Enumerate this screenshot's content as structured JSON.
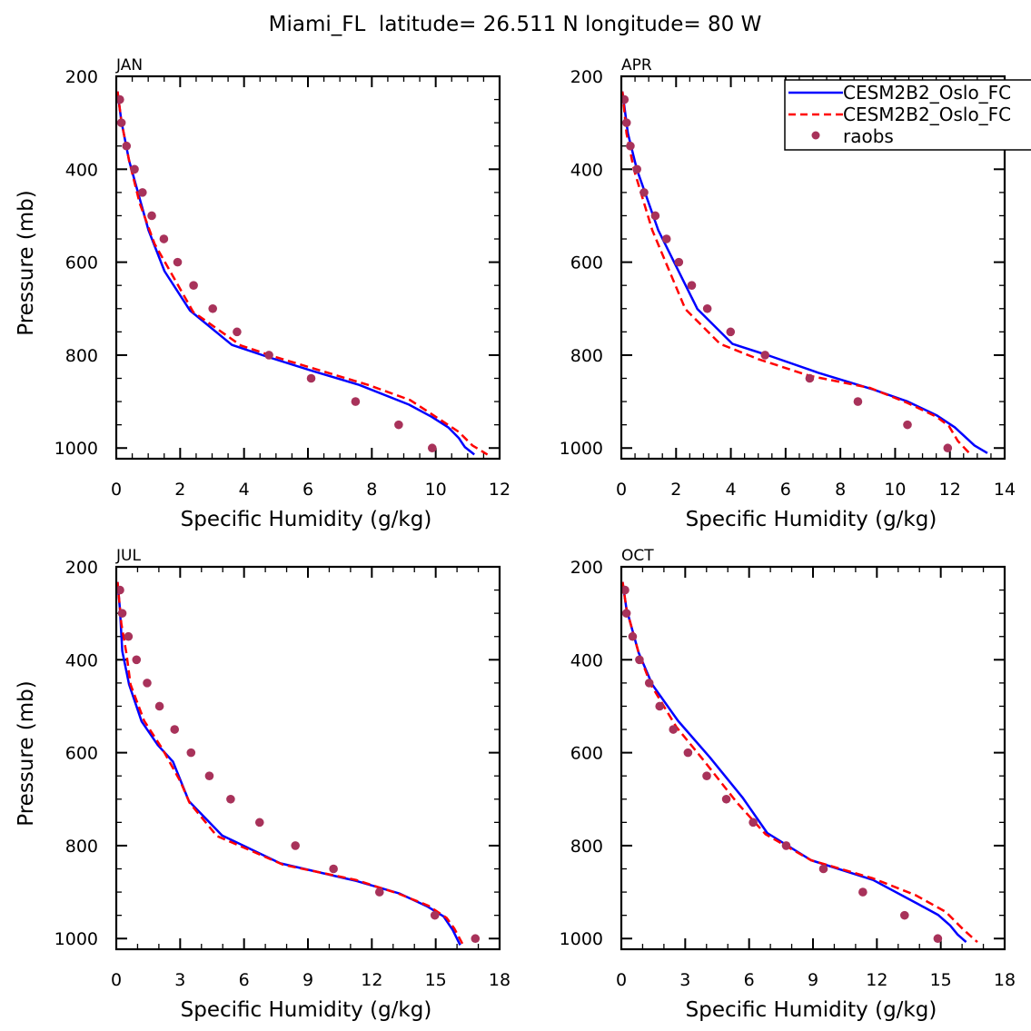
{
  "figure_title": "Miami_FL  latitude= 26.511 N longitude= 80 W",
  "legend": {
    "entries": [
      "CESM2B2_Oslo_FC",
      "CESM2B2_Oslo_FC",
      "raobs"
    ],
    "placement": "top-right of APR panel",
    "colors": [
      "#0000ff",
      "#ff0000",
      "#a8325a"
    ],
    "styles": [
      "solid",
      "dashed",
      "dot"
    ]
  },
  "chart_data": [
    {
      "type": "line",
      "title": "JAN",
      "xlabel": "Specific Humidity (g/kg)",
      "ylabel": "Pressure (mb)",
      "xlim": [
        0,
        12
      ],
      "ylim": [
        200,
        1023
      ],
      "y_inverted": true,
      "xticks": [
        0,
        2,
        4,
        6,
        8,
        10,
        12
      ],
      "yticks": [
        200,
        400,
        600,
        800,
        1000
      ],
      "series": [
        {
          "name": "CESM2B2_Oslo_FC",
          "style": "solid",
          "pressure": [
            232.6,
            296.5,
            381.3,
            531.4,
            619.4,
            704.2,
            778,
            804,
            834.7,
            864,
            906.5,
            932.6,
            955.4,
            978.2,
            997.8,
            1014
          ],
          "values": [
            0.04,
            0.16,
            0.4,
            1.01,
            1.51,
            2.31,
            3.62,
            4.75,
            6.17,
            7.6,
            9.16,
            9.87,
            10.39,
            10.72,
            10.91,
            11.21
          ]
        },
        {
          "name": "CESM2B2_Oslo_FC",
          "style": "dashed",
          "pressure": [
            232.6,
            296.5,
            381.3,
            472.7,
            560.7,
            707.5,
            779.2,
            805.3,
            864,
            896.7,
            939,
            965.2,
            994.5,
            1014
          ],
          "values": [
            0.04,
            0.16,
            0.4,
            0.73,
            1.2,
            2.41,
            3.9,
            5.04,
            7.88,
            9.2,
            10.14,
            10.72,
            11.15,
            11.62
          ]
        },
        {
          "name": "raobs",
          "style": "dot",
          "pressure": [
            250,
            300,
            350,
            400,
            450,
            500,
            550,
            600,
            650,
            700,
            750,
            800,
            850,
            900,
            950,
            1000
          ],
          "values": [
            0.11,
            0.16,
            0.32,
            0.57,
            0.82,
            1.11,
            1.49,
            1.92,
            2.42,
            3.02,
            3.78,
            4.78,
            6.1,
            7.49,
            8.84,
            9.89
          ]
        }
      ]
    },
    {
      "type": "line",
      "title": "APR",
      "xlabel": "Specific Humidity (g/kg)",
      "ylabel": "",
      "xlim": [
        0,
        14
      ],
      "ylim": [
        200,
        1023
      ],
      "y_inverted": true,
      "xticks": [
        0,
        2,
        4,
        6,
        8,
        10,
        12,
        14
      ],
      "yticks": [
        200,
        400,
        600,
        800,
        1000
      ],
      "series": [
        {
          "name": "CESM2B2_Oslo_FC",
          "style": "solid",
          "pressure": [
            232.6,
            322.6,
            400.9,
            531.4,
            701,
            776,
            802.1,
            838,
            873.9,
            900,
            929.3,
            955.4,
            994.5,
            1010.8
          ],
          "values": [
            0.04,
            0.24,
            0.57,
            1.35,
            2.78,
            4.06,
            5.44,
            7.2,
            9.19,
            10.46,
            11.51,
            12.18,
            12.9,
            13.37
          ]
        },
        {
          "name": "CESM2B2_Oslo_FC",
          "style": "dashed",
          "pressure": [
            232.6,
            322.6,
            400.9,
            531.4,
            701,
            776,
            808.6,
            844.5,
            870.6,
            903.2,
            932.6,
            952.2,
            984.8,
            1010.8
          ],
          "values": [
            0.04,
            0.19,
            0.46,
            1.13,
            2.34,
            3.61,
            5.0,
            6.87,
            9.08,
            10.46,
            11.51,
            11.96,
            12.29,
            12.71
          ]
        },
        {
          "name": "raobs",
          "style": "dot",
          "pressure": [
            250,
            300,
            350,
            400,
            450,
            500,
            550,
            600,
            650,
            700,
            750,
            800,
            850,
            900,
            950,
            1000
          ],
          "values": [
            0.11,
            0.19,
            0.33,
            0.57,
            0.83,
            1.24,
            1.65,
            2.1,
            2.57,
            3.14,
            3.99,
            5.25,
            6.88,
            8.64,
            10.45,
            11.92
          ]
        }
      ]
    },
    {
      "type": "line",
      "title": "JUL",
      "xlabel": "Specific Humidity (g/kg)",
      "ylabel": "Pressure (mb)",
      "xlim": [
        0,
        18
      ],
      "ylim": [
        200,
        1023
      ],
      "y_inverted": true,
      "xticks": [
        0,
        3,
        6,
        9,
        12,
        15,
        18
      ],
      "yticks": [
        200,
        400,
        600,
        800,
        1000
      ],
      "series": [
        {
          "name": "CESM2B2_Oslo_FC",
          "style": "solid",
          "pressure": [
            232.6,
            290,
            381.3,
            453.1,
            532.7,
            583.6,
            619.4,
            704.2,
            778,
            838,
            875.8,
            903.2,
            930.6,
            952.2,
            981.5,
            1014
          ],
          "values": [
            0.06,
            0.17,
            0.28,
            0.6,
            1.19,
            1.95,
            2.66,
            3.41,
            4.97,
            7.7,
            11.25,
            13.31,
            14.59,
            15.37,
            15.8,
            16.15
          ]
        },
        {
          "name": "CESM2B2_Oslo_FC",
          "style": "dashed",
          "pressure": [
            232.6,
            322.6,
            387.9,
            453.1,
            531.4,
            591.4,
            661.9,
            707.5,
            779.2,
            818.4,
            841.2,
            873.9,
            903.2,
            929.3,
            955.4,
            978.2,
            1010.8
          ],
          "values": [
            0.06,
            0.24,
            0.48,
            0.67,
            1.31,
            2.16,
            3.01,
            3.44,
            4.72,
            6.7,
            7.84,
            11.25,
            13.24,
            14.66,
            15.51,
            15.87,
            16.25
          ]
        },
        {
          "name": "raobs",
          "style": "dot",
          "pressure": [
            250,
            300,
            350,
            400,
            450,
            500,
            550,
            600,
            650,
            700,
            750,
            800,
            850,
            900,
            950,
            1000
          ],
          "values": [
            0.17,
            0.28,
            0.57,
            0.95,
            1.45,
            2.03,
            2.74,
            3.51,
            4.37,
            5.37,
            6.73,
            8.41,
            10.2,
            12.36,
            14.96,
            16.86
          ]
        }
      ]
    },
    {
      "type": "line",
      "title": "OCT",
      "xlabel": "Specific Humidity (g/kg)",
      "ylabel": "",
      "xlim": [
        0,
        18
      ],
      "ylim": [
        200,
        1023
      ],
      "y_inverted": true,
      "xticks": [
        0,
        3,
        6,
        9,
        12,
        15,
        18
      ],
      "yticks": [
        200,
        400,
        600,
        800,
        1000
      ],
      "series": [
        {
          "name": "CESM2B2_Oslo_FC",
          "style": "solid",
          "pressure": [
            232.6,
            290,
            384.6,
            453.1,
            531.4,
            609.7,
            697.7,
            772.7,
            831.4,
            873.9,
            926.1,
            948.9,
            971.7,
            991.3,
            1007.6
          ],
          "values": [
            0.06,
            0.24,
            0.81,
            1.45,
            2.66,
            4.15,
            5.71,
            6.85,
            8.91,
            11.82,
            13.95,
            14.87,
            15.44,
            15.79,
            16.19
          ]
        },
        {
          "name": "CESM2B2_Oslo_FC",
          "style": "dashed",
          "pressure": [
            232.6,
            290,
            384.6,
            453.1,
            544.5,
            616.2,
            707.5,
            776,
            831.4,
            870.6,
            906.5,
            942.4,
            981.5,
            1007.6
          ],
          "values": [
            0.06,
            0.24,
            0.81,
            1.38,
            2.58,
            3.86,
            5.43,
            6.78,
            8.91,
            11.82,
            13.81,
            15.23,
            16.08,
            16.72
          ]
        },
        {
          "name": "raobs",
          "style": "dot",
          "pressure": [
            250,
            300,
            350,
            400,
            450,
            500,
            550,
            600,
            650,
            700,
            750,
            800,
            850,
            900,
            950,
            1000
          ],
          "values": [
            0.17,
            0.24,
            0.53,
            0.85,
            1.31,
            1.8,
            2.44,
            3.13,
            4.01,
            4.93,
            6.19,
            7.74,
            9.49,
            11.34,
            13.3,
            14.86
          ]
        }
      ]
    }
  ]
}
